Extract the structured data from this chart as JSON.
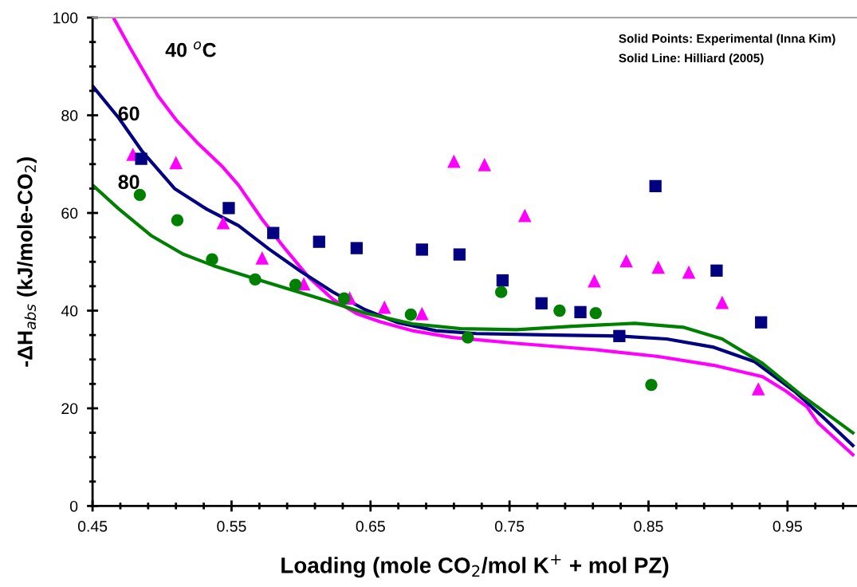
{
  "chart_data": {
    "type": "scatter",
    "xlabel": "Loading (mole CO$_{2}$/mol K$^{+}$ + mol PZ)",
    "ylabel": "-ΔH$_{abs}$ (kJ/mole-CO$_{2}$)",
    "xlim": [
      0.45,
      1.0
    ],
    "ylim": [
      0,
      100
    ],
    "xticks": [
      0.45,
      {
        "value": 0.47,
        "label": null
      },
      {
        "value": 0.49,
        "label": null
      },
      {
        "value": 0.51,
        "label": null
      },
      {
        "value": 0.53,
        "label": null
      },
      0.55,
      {
        "value": 0.57,
        "label": null
      },
      {
        "value": 0.59,
        "label": null
      },
      {
        "value": 0.61,
        "label": null
      },
      {
        "value": 0.63,
        "label": null
      },
      0.65,
      {
        "value": 0.67,
        "label": null
      },
      {
        "value": 0.69,
        "label": null
      },
      {
        "value": 0.71,
        "label": null
      },
      {
        "value": 0.73,
        "label": null
      },
      0.75,
      {
        "value": 0.77,
        "label": null
      },
      {
        "value": 0.79,
        "label": null
      },
      {
        "value": 0.81,
        "label": null
      },
      {
        "value": 0.83,
        "label": null
      },
      0.85,
      {
        "value": 0.87,
        "label": null
      },
      {
        "value": 0.89,
        "label": null
      },
      {
        "value": 0.91,
        "label": null
      },
      {
        "value": 0.93,
        "label": null
      },
      0.95,
      {
        "value": 0.97,
        "label": null
      },
      {
        "value": 0.99,
        "label": null
      }
    ],
    "yticks": [
      0,
      {
        "value": 5,
        "label": null
      },
      {
        "value": 10,
        "label": null
      },
      {
        "value": 15,
        "label": null
      },
      20,
      {
        "value": 25,
        "label": null
      },
      {
        "value": 30,
        "label": null
      },
      {
        "value": 35,
        "label": null
      },
      40,
      {
        "value": 45,
        "label": null
      },
      {
        "value": 50,
        "label": null
      },
      {
        "value": 55,
        "label": null
      },
      60,
      {
        "value": 65,
        "label": null
      },
      {
        "value": 70,
        "label": null
      },
      {
        "value": 75,
        "label": null
      },
      80,
      {
        "value": 85,
        "label": null
      },
      {
        "value": 90,
        "label": null
      },
      {
        "value": 95,
        "label": null
      },
      100
    ],
    "grid": false,
    "legend": false,
    "series": [
      {
        "type": "line",
        "color": "#ff00ff",
        "line_style": "solid",
        "x": [
          0.465,
          0.477,
          0.497,
          0.51,
          0.526,
          0.543,
          0.555,
          0.572,
          0.589,
          0.606,
          0.623,
          0.64,
          0.657,
          0.68,
          0.709,
          0.755,
          0.812,
          0.857,
          0.897,
          0.932,
          0.949,
          0.964,
          0.972,
          0.997
        ],
        "values": [
          100,
          93.8,
          84,
          79.1,
          74.2,
          69.6,
          65.7,
          58.7,
          52.5,
          46.7,
          42.3,
          39.4,
          37.7,
          35.9,
          34.5,
          33.3,
          32.0,
          30.6,
          28.8,
          26.5,
          23.5,
          20.3,
          17,
          10.5
        ]
      },
      {
        "type": "line",
        "color": "#000080",
        "line_style": "solid",
        "x": [
          0.45,
          0.469,
          0.486,
          0.509,
          0.532,
          0.555,
          0.577,
          0.6,
          0.623,
          0.646,
          0.669,
          0.697,
          0.726,
          0.783,
          0.829,
          0.863,
          0.897,
          0.926,
          0.955,
          0.977,
          0.997
        ],
        "values": [
          86,
          79.4,
          72.5,
          65,
          60.8,
          57.4,
          52.6,
          48,
          43.8,
          40.2,
          37.6,
          35.9,
          35.3,
          35.0,
          34.8,
          34.2,
          32.5,
          29.6,
          23.5,
          17.8,
          12.4
        ]
      },
      {
        "type": "line",
        "color": "#008000",
        "line_style": "solid",
        "x": [
          0.45,
          0.469,
          0.492,
          0.515,
          0.537,
          0.572,
          0.612,
          0.646,
          0.68,
          0.715,
          0.755,
          0.795,
          0.84,
          0.875,
          0.903,
          0.932,
          0.96,
          0.997
        ],
        "values": [
          65.7,
          60.8,
          55.4,
          51.6,
          49.2,
          46.1,
          42.6,
          39.5,
          37.3,
          36.3,
          36.1,
          36.8,
          37.4,
          36.6,
          34.2,
          29.2,
          22.7,
          15
        ]
      },
      {
        "marker": "triangle",
        "color": "#ff00ff",
        "x": [
          0.479,
          0.51,
          0.544,
          0.572,
          0.602,
          0.635,
          0.66,
          0.687,
          0.71,
          0.732,
          0.761,
          0.811,
          0.834,
          0.857,
          0.879,
          0.903,
          0.929
        ],
        "values": [
          72,
          70.3,
          58,
          50.8,
          45.5,
          42.6,
          40.7,
          39.4,
          70.6,
          69.9,
          59.5,
          46.1,
          50.2,
          48.9,
          47.9,
          41.7,
          24.0
        ]
      },
      {
        "marker": "square",
        "color": "#000080",
        "x": [
          0.485,
          0.548,
          0.58,
          0.613,
          0.64,
          0.687,
          0.714,
          0.745,
          0.773,
          0.801,
          0.829,
          0.855,
          0.899,
          0.931
        ],
        "values": [
          71.1,
          61.0,
          55.9,
          54.1,
          52.8,
          52.5,
          51.5,
          46.2,
          41.5,
          39.7,
          34.8,
          65.5,
          48.2,
          37.6
        ]
      },
      {
        "marker": "circle",
        "color": "#008000",
        "x": [
          0.484,
          0.511,
          0.536,
          0.567,
          0.596,
          0.631,
          0.679,
          0.72,
          0.744,
          0.786,
          0.812,
          0.852
        ],
        "values": [
          63.7,
          58.5,
          50.5,
          46.4,
          45.3,
          42.5,
          39.2,
          34.5,
          43.8,
          40.0,
          39.5,
          24.8
        ]
      }
    ],
    "annotations": [
      "40 $^{o}$C",
      "60",
      "80",
      "Solid Points: Experimental (Inna Kim)",
      "Solid Line: Hilliard (2005)"
    ]
  }
}
